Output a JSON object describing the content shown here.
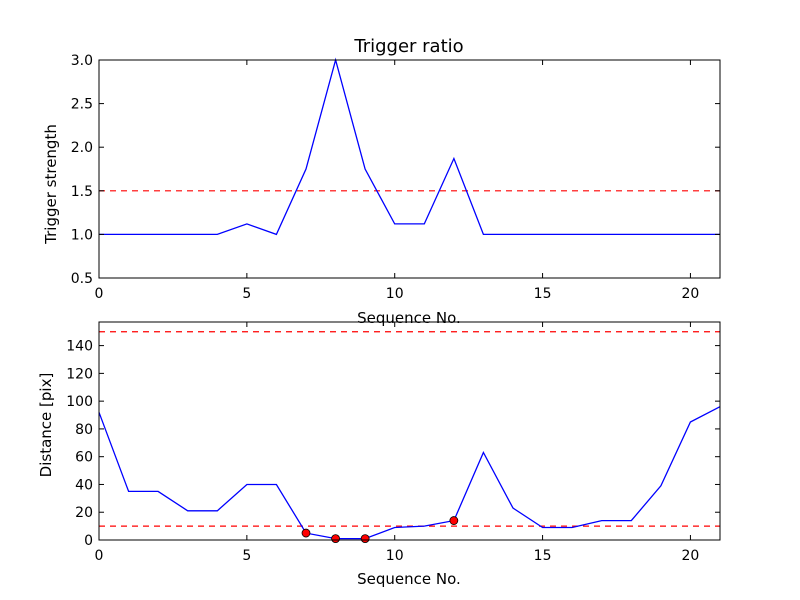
{
  "chart_data": [
    {
      "type": "line",
      "title": "Trigger ratio",
      "xlabel": "Sequence No.",
      "ylabel": "Trigger strength",
      "xlim": [
        0,
        21
      ],
      "ylim": [
        0.5,
        3.0
      ],
      "xticks": [
        "0",
        "5",
        "10",
        "15",
        "20"
      ],
      "yticks": [
        "0.5",
        "1.0",
        "1.5",
        "2.0",
        "2.5",
        "3.0"
      ],
      "grid": false,
      "series": [
        {
          "color": "#0000ff",
          "x": [
            0,
            1,
            2,
            3,
            4,
            5,
            6,
            7,
            8,
            9,
            10,
            11,
            12,
            13,
            14,
            15,
            16,
            17,
            18,
            19,
            20,
            21
          ],
          "y": [
            1.0,
            1.0,
            1.0,
            1.0,
            1.0,
            1.12,
            1.0,
            1.75,
            3.0,
            1.75,
            1.12,
            1.12,
            1.87,
            1.0,
            1.0,
            1.0,
            1.0,
            1.0,
            1.0,
            1.0,
            1.0,
            1.0
          ]
        }
      ],
      "threshold_lines": [
        {
          "y": 1.5,
          "color": "#ff0000",
          "style": "dashed"
        }
      ]
    },
    {
      "type": "line",
      "title": "",
      "xlabel": "Sequence No.",
      "ylabel": "Distance [pix]",
      "xlim": [
        0,
        21
      ],
      "ylim": [
        0,
        157
      ],
      "xticks": [
        "0",
        "5",
        "10",
        "15",
        "20"
      ],
      "yticks": [
        "0",
        "20",
        "40",
        "60",
        "80",
        "100",
        "120",
        "140"
      ],
      "grid": false,
      "series": [
        {
          "color": "#0000ff",
          "x": [
            0,
            1,
            2,
            3,
            4,
            5,
            6,
            7,
            8,
            9,
            10,
            11,
            12,
            13,
            14,
            15,
            16,
            17,
            18,
            19,
            20,
            21
          ],
          "y": [
            92,
            35,
            35,
            21,
            21,
            40,
            40,
            5,
            1,
            1,
            9,
            10,
            14,
            63,
            23,
            9,
            9,
            14,
            14,
            39,
            85,
            96
          ]
        }
      ],
      "markers": {
        "color": "#ff0000",
        "x": [
          7,
          8,
          9,
          12
        ],
        "y": [
          5,
          1,
          1,
          14
        ]
      },
      "threshold_lines": [
        {
          "y": 150,
          "color": "#ff0000",
          "style": "dashed"
        },
        {
          "y": 10,
          "color": "#ff0000",
          "style": "dashed"
        }
      ]
    }
  ]
}
